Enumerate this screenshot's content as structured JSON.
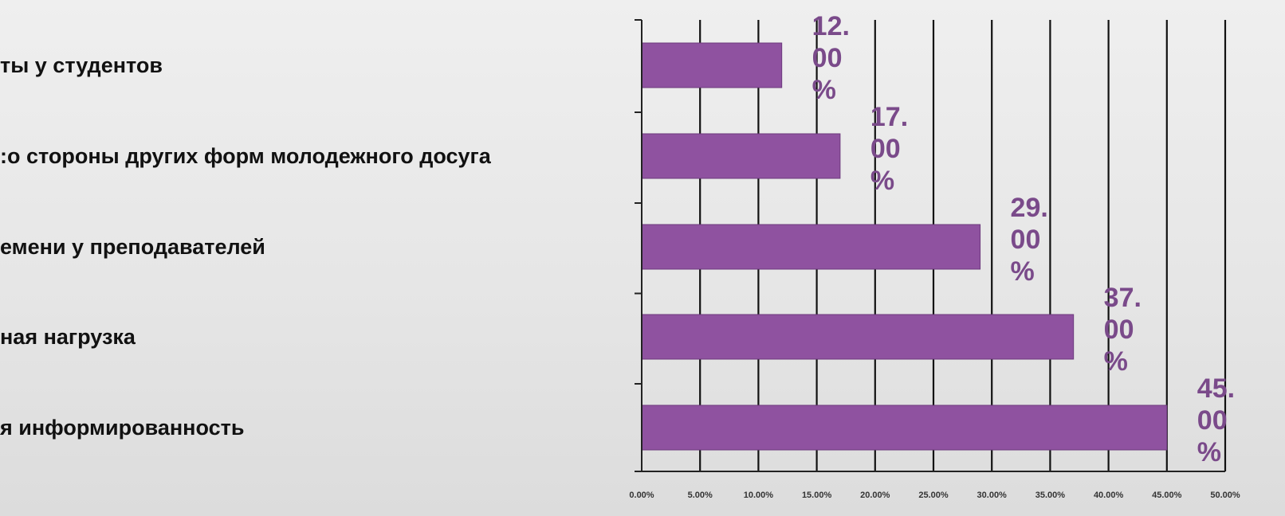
{
  "chart_data": {
    "type": "bar",
    "orientation": "horizontal",
    "categories": [
      "ты у студентов",
      ":о стороны других форм молодежного досуга",
      "емени у преподавателей",
      "ная нагрузка",
      "я информированность"
    ],
    "values": [
      12,
      17,
      29,
      37,
      45
    ],
    "data_labels": [
      [
        "12.",
        "00",
        "%"
      ],
      [
        "17.",
        "00",
        "%"
      ],
      [
        "29.",
        "00",
        "%"
      ],
      [
        "37.",
        "00",
        "%"
      ],
      [
        "45.",
        "00",
        "%"
      ]
    ],
    "xlim": [
      0,
      50
    ],
    "x_ticks": [
      "0.00%",
      "5.00%",
      "10.00%",
      "15.00%",
      "20.00%",
      "25.00%",
      "30.00%",
      "35.00%",
      "40.00%",
      "45.00%",
      "50.00%"
    ],
    "grid": true,
    "legend": "none",
    "bar_color": "#8f52a0",
    "label_color": "#7a4a8a"
  }
}
